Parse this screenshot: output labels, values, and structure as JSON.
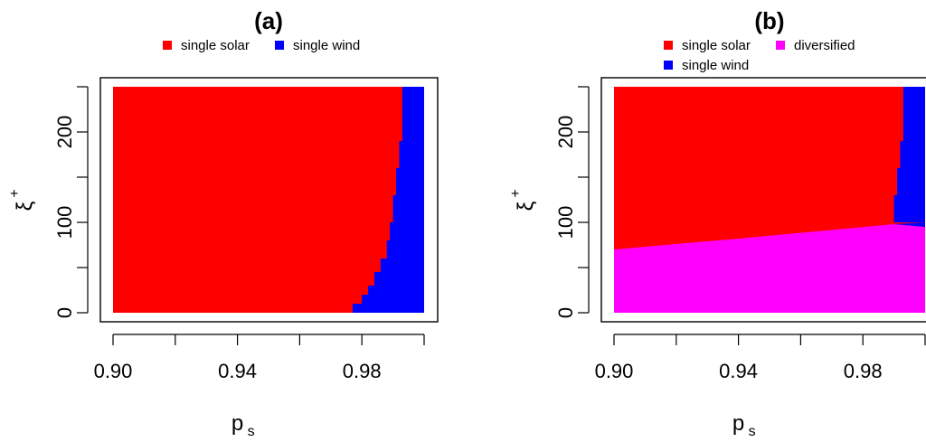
{
  "chart_data": [
    {
      "type": "heatmap",
      "title": "(a)",
      "xlabel": "p",
      "xlabel_sub": "s",
      "ylabel": "ξ",
      "ylabel_sup": "+",
      "xlim": [
        0.9,
        1.0
      ],
      "ylim": [
        0,
        250
      ],
      "xticks": [
        0.9,
        0.94,
        0.98
      ],
      "xtick_labels": [
        "0.90",
        "0.94",
        "0.98"
      ],
      "yticks": [
        0,
        100,
        200
      ],
      "ytick_labels": [
        "0",
        "100",
        "200"
      ],
      "legend": [
        {
          "label": "single solar",
          "color": "#ff0000"
        },
        {
          "label": "single wind",
          "color": "#0000ff"
        }
      ],
      "legend_position": "top",
      "regions": [
        {
          "name": "single solar",
          "color": "#ff0000"
        },
        {
          "name": "single wind",
          "color": "#0000ff"
        }
      ],
      "boundary_solar_wind": [
        [
          0.977,
          0
        ],
        [
          0.98,
          10
        ],
        [
          0.982,
          20
        ],
        [
          0.984,
          30
        ],
        [
          0.986,
          45
        ],
        [
          0.988,
          60
        ],
        [
          0.989,
          80
        ],
        [
          0.99,
          100
        ],
        [
          0.991,
          130
        ],
        [
          0.992,
          160
        ],
        [
          0.993,
          190
        ],
        [
          0.993,
          220
        ],
        [
          0.994,
          250
        ]
      ]
    },
    {
      "type": "heatmap",
      "title": "(b)",
      "xlabel": "p",
      "xlabel_sub": "s",
      "ylabel": "ξ",
      "ylabel_sup": "+",
      "xlim": [
        0.9,
        1.0
      ],
      "ylim": [
        0,
        250
      ],
      "xticks": [
        0.9,
        0.94,
        0.98
      ],
      "xtick_labels": [
        "0.90",
        "0.94",
        "0.98"
      ],
      "yticks": [
        0,
        100,
        200
      ],
      "ytick_labels": [
        "0",
        "100",
        "200"
      ],
      "legend": [
        {
          "label": "single solar",
          "color": "#ff0000"
        },
        {
          "label": "diversified",
          "color": "#ff00ff"
        },
        {
          "label": "single wind",
          "color": "#0000ff"
        }
      ],
      "legend_position": "top",
      "regions": [
        {
          "name": "single solar",
          "color": "#ff0000"
        },
        {
          "name": "diversified",
          "color": "#ff00ff"
        },
        {
          "name": "single wind",
          "color": "#0000ff"
        }
      ],
      "boundary_diversified": [
        [
          0.9,
          70
        ],
        [
          0.94,
          82
        ],
        [
          0.99,
          98
        ],
        [
          1.0,
          95
        ]
      ],
      "boundary_solar_wind": [
        [
          0.99,
          100
        ],
        [
          0.991,
          130
        ],
        [
          0.992,
          160
        ],
        [
          0.993,
          190
        ],
        [
          0.993,
          220
        ],
        [
          0.994,
          250
        ]
      ]
    }
  ]
}
